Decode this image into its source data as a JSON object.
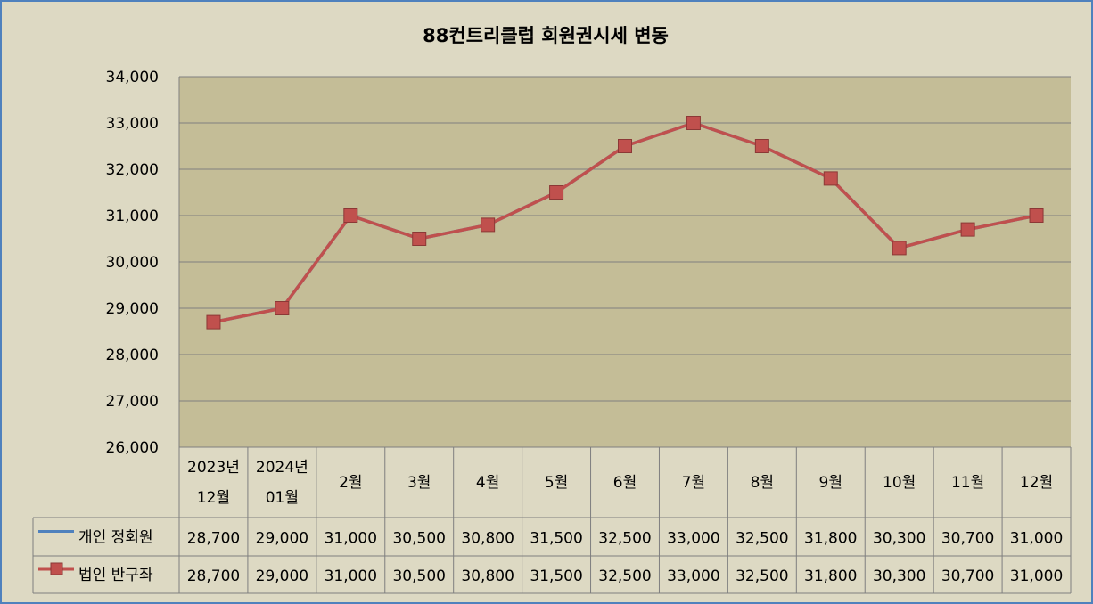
{
  "chart_data": {
    "type": "line",
    "title": "88컨트리클럽 회원권시세 변동",
    "categories": [
      [
        "2023년",
        "12월"
      ],
      [
        "2024년",
        "01월"
      ],
      [
        "2월"
      ],
      [
        "3월"
      ],
      [
        "4월"
      ],
      [
        "5월"
      ],
      [
        "6월"
      ],
      [
        "7월"
      ],
      [
        "8월"
      ],
      [
        "9월"
      ],
      [
        "10월"
      ],
      [
        "11월"
      ],
      [
        "12월"
      ]
    ],
    "ylim": [
      26000,
      34000
    ],
    "yticks": [
      "26,000",
      "27,000",
      "28,000",
      "29,000",
      "30,000",
      "31,000",
      "32,000",
      "33,000",
      "34,000"
    ],
    "grid": true,
    "legend": "data-table",
    "series": [
      {
        "name": "개인 정회원",
        "color": "#4f81bd",
        "marker": "none",
        "values": [
          28700,
          29000,
          31000,
          30500,
          30800,
          31500,
          32500,
          33000,
          32500,
          31800,
          30300,
          30700,
          31000
        ],
        "labels": [
          "28,700",
          "29,000",
          "31,000",
          "30,500",
          "30,800",
          "31,500",
          "32,500",
          "33,000",
          "32,500",
          "31,800",
          "30,300",
          "30,700",
          "31,000"
        ]
      },
      {
        "name": "법인 반구좌",
        "color": "#c0504d",
        "marker": "square",
        "values": [
          28700,
          29000,
          31000,
          30500,
          30800,
          31500,
          32500,
          33000,
          32500,
          31800,
          30300,
          30700,
          31000
        ],
        "labels": [
          "28,700",
          "29,000",
          "31,000",
          "30,500",
          "30,800",
          "31,500",
          "32,500",
          "33,000",
          "32,500",
          "31,800",
          "30,300",
          "30,700",
          "31,000"
        ]
      }
    ]
  },
  "colors": {
    "background": "#ddd9c3",
    "plot_area": "#c4bd97",
    "gridline": "#7f7f7f",
    "border": "#4f81bd"
  }
}
